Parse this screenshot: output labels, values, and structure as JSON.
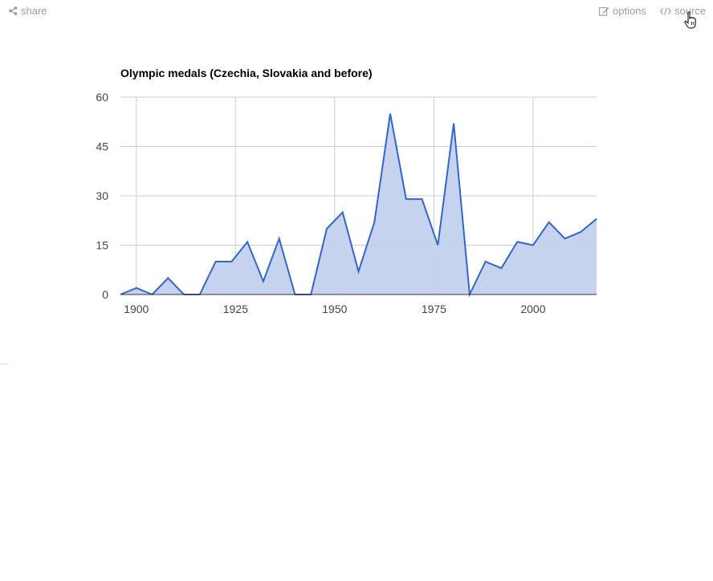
{
  "toolbar": {
    "share_label": "share",
    "options_label": "options",
    "source_label": "source"
  },
  "colors": {
    "series_line": "#3366cc",
    "series_fill": "#c3d1ee",
    "grid": "#cccccc",
    "toolbar_text": "#9e9e9e"
  },
  "chart_data": {
    "type": "area",
    "title": "Olympic medals (Czechia, Slovakia and before)",
    "xlabel": "",
    "ylabel": "",
    "x_ticks": [
      1900,
      1925,
      1950,
      1975,
      2000
    ],
    "y_ticks": [
      0,
      15,
      30,
      45,
      60
    ],
    "xlim": [
      1896,
      2016
    ],
    "ylim": [
      0,
      60
    ],
    "grid": true,
    "legend": "none",
    "series": [
      {
        "x": [
          1896,
          1900,
          1904,
          1908,
          1912,
          1916,
          1920,
          1924,
          1928,
          1932,
          1936,
          1940,
          1944,
          1948,
          1952,
          1956,
          1960,
          1964,
          1968,
          1972,
          1976,
          1980,
          1984,
          1988,
          1992,
          1996,
          2000,
          2004,
          2008,
          2012,
          2016
        ],
        "y": [
          0,
          2,
          0,
          5,
          0,
          0,
          10,
          10,
          16,
          4,
          17,
          0,
          0,
          20,
          25,
          7,
          22,
          55,
          29,
          29,
          15,
          52,
          0,
          10,
          8,
          16,
          15,
          22,
          17,
          19,
          23
        ]
      }
    ]
  }
}
